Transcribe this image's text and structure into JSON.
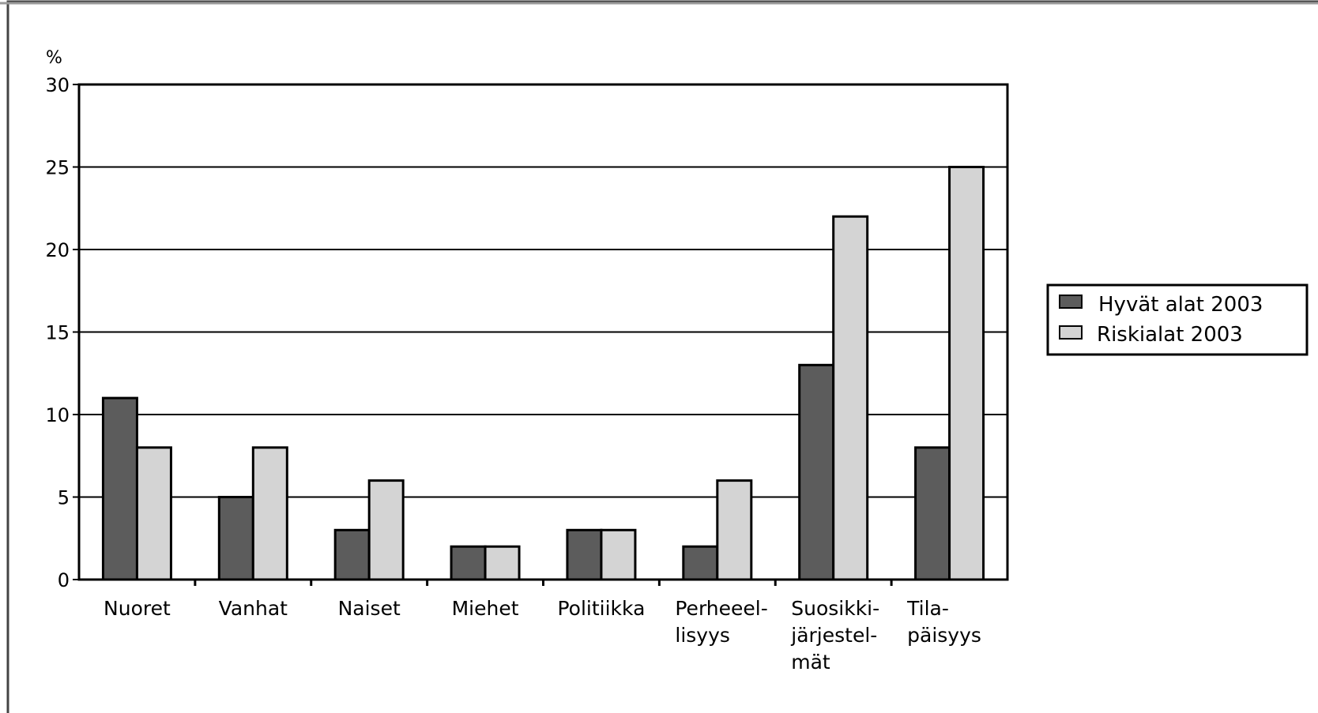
{
  "chart_data": {
    "type": "bar",
    "title": "",
    "xlabel": "",
    "ylabel": "%",
    "ylim": [
      0,
      30
    ],
    "yticks": [
      0,
      5,
      10,
      15,
      20,
      25,
      30
    ],
    "grid": true,
    "legend_position": "right",
    "categories": [
      [
        "Nuoret"
      ],
      [
        "Vanhat"
      ],
      [
        "Naiset"
      ],
      [
        "Miehet"
      ],
      [
        "Politiikka"
      ],
      [
        "Perheeel-",
        "lisyys"
      ],
      [
        "Suosikki-",
        "järjestel-",
        "mät"
      ],
      [
        "Tila-",
        "päisyys"
      ]
    ],
    "series": [
      {
        "name": "Hyvät alat 2003",
        "color": "#5c5c5c",
        "values": [
          11,
          5,
          3,
          2,
          3,
          2,
          13,
          8
        ]
      },
      {
        "name": "Riskialat 2003",
        "color": "#d4d4d4",
        "values": [
          8,
          8,
          6,
          2,
          3,
          6,
          22,
          25
        ]
      }
    ]
  }
}
